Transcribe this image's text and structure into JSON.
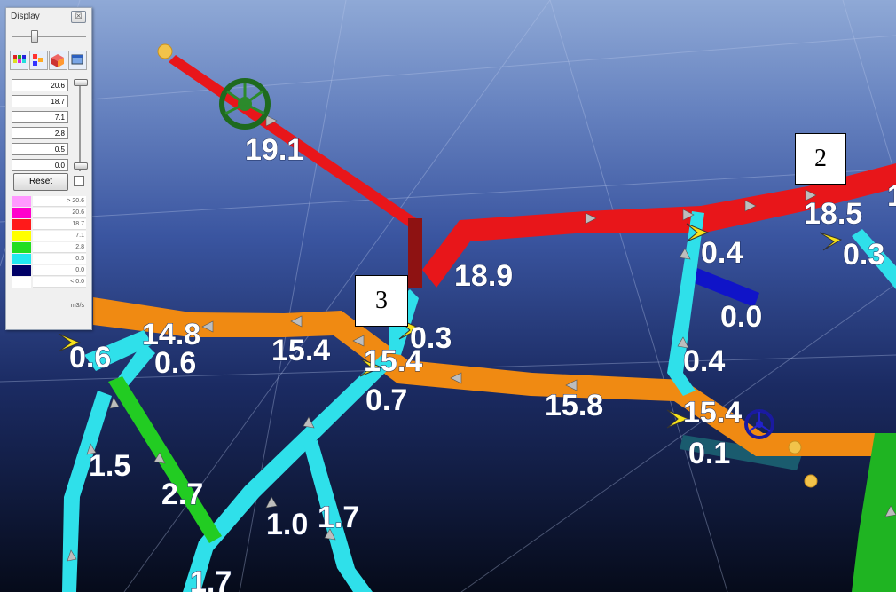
{
  "display_panel": {
    "title": "Display",
    "close_label": "☒",
    "range_values": [
      "20.6",
      "18.7",
      "7.1",
      "2.8",
      "0.5",
      "0.0"
    ],
    "reset_label": "Reset",
    "legend": [
      {
        "label": "> 20.6",
        "color": "#ff99ff"
      },
      {
        "label": "20.6",
        "color": "#ff00cc"
      },
      {
        "label": "18.7",
        "color": "#ff1a1a"
      },
      {
        "label": "7.1",
        "color": "#ffff00"
      },
      {
        "label": "2.8",
        "color": "#22dd22"
      },
      {
        "label": "0.5",
        "color": "#22e8f0"
      },
      {
        "label": "0.0",
        "color": "#000066"
      },
      {
        "label": "< 0.0",
        "color": "#ffffff"
      }
    ],
    "unit": "m3/s"
  },
  "node_labels": {
    "node_2": "2",
    "node_3": "3"
  },
  "flow_labels": {
    "f1": "19.1",
    "f2": "18.9",
    "f3": "18.5",
    "f4": "0.4",
    "f5": "0.3",
    "f6": "0.0",
    "f7": "0.3",
    "f8": "15.4",
    "f9": "14.8",
    "f10": "0.6",
    "f11": "0.6",
    "f12": "15.4",
    "f13": "0.4",
    "f14": "0.7",
    "f15": "15.8",
    "f16": "15.4",
    "f17": "0.1",
    "f18": "1.5",
    "f19": "2.7",
    "f20": "1.0",
    "f21": "1.7",
    "f22": "1.7",
    "f23": "1"
  },
  "colors": {
    "background_top": "#8fa9d6",
    "background_bottom": "#060b1a",
    "red_airway": "#e8161a",
    "orange_airway": "#f08a12",
    "cyan_airway": "#2fe0ea",
    "green_airway": "#22cc22",
    "blue_airway": "#1014c8",
    "dark_teal_airway": "#1a5b6e"
  }
}
